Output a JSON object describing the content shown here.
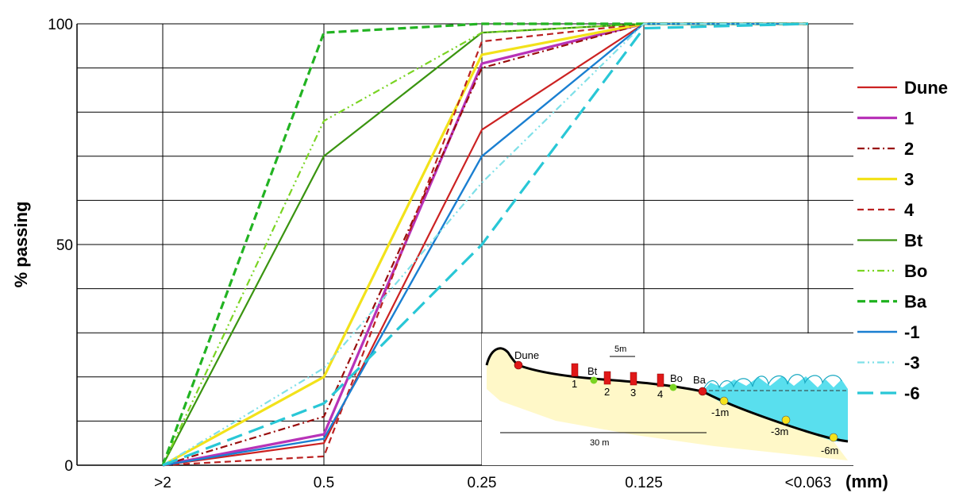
{
  "chart_data": {
    "type": "line",
    "title": "",
    "xlabel": "",
    "x_unit": "(mm)",
    "ylabel": "% passing",
    "ylim": [
      0,
      100
    ],
    "y_ticks": [
      "0",
      "50",
      "100"
    ],
    "categories": [
      ">2",
      "0.5",
      "0.25",
      "0.125",
      "<0.063"
    ],
    "grid": true,
    "legend_position": "right",
    "series": [
      {
        "name": "Dune",
        "color": "#cc2222",
        "dash": "",
        "width": 2.2,
        "values": [
          0,
          5,
          76,
          100,
          100
        ]
      },
      {
        "name": "1",
        "color": "#b833b8",
        "dash": "",
        "width": 3.2,
        "values": [
          0,
          7,
          91,
          100,
          100
        ]
      },
      {
        "name": "2",
        "color": "#990d0d",
        "dash": "9 4 2 4",
        "width": 2.2,
        "values": [
          0,
          11,
          90,
          100,
          100
        ]
      },
      {
        "name": "3",
        "color": "#f2e21a",
        "dash": "",
        "width": 3.2,
        "values": [
          0,
          20,
          93,
          100,
          100
        ]
      },
      {
        "name": "4",
        "color": "#bb2222",
        "dash": "8 5",
        "width": 2.2,
        "values": [
          0,
          2,
          96,
          100,
          100
        ]
      },
      {
        "name": "Bt",
        "color": "#3a9410",
        "dash": "",
        "width": 2.2,
        "values": [
          0,
          70,
          98,
          100,
          100
        ]
      },
      {
        "name": "Bo",
        "color": "#7ad423",
        "dash": "9 4 2 4 2 4",
        "width": 2.2,
        "values": [
          0,
          78,
          98,
          100,
          100
        ]
      },
      {
        "name": "Ba",
        "color": "#22b322",
        "dash": "10 5",
        "width": 3.2,
        "values": [
          0,
          98,
          100,
          100,
          100
        ]
      },
      {
        "name": "-1",
        "color": "#1a7fd1",
        "dash": "",
        "width": 2.4,
        "values": [
          0,
          6,
          70,
          100,
          100
        ]
      },
      {
        "name": "-3",
        "color": "#7fe0e8",
        "dash": "9 4 2 4 2 4",
        "width": 2.2,
        "values": [
          0,
          22,
          64,
          100,
          100
        ]
      },
      {
        "name": "-6",
        "color": "#29c7d6",
        "dash": "20 9",
        "width": 3.2,
        "values": [
          0,
          14,
          50,
          99,
          100
        ]
      }
    ]
  },
  "inset": {
    "labels": {
      "dune": "Dune",
      "p1": "1",
      "p2": "2",
      "p3": "3",
      "p4": "4",
      "bt": "Bt",
      "bo": "Bo",
      "ba": "Ba",
      "m1": "-1m",
      "m3": "-3m",
      "m6": "-6m",
      "scale_small": "5m",
      "scale_large": "30 m"
    }
  }
}
